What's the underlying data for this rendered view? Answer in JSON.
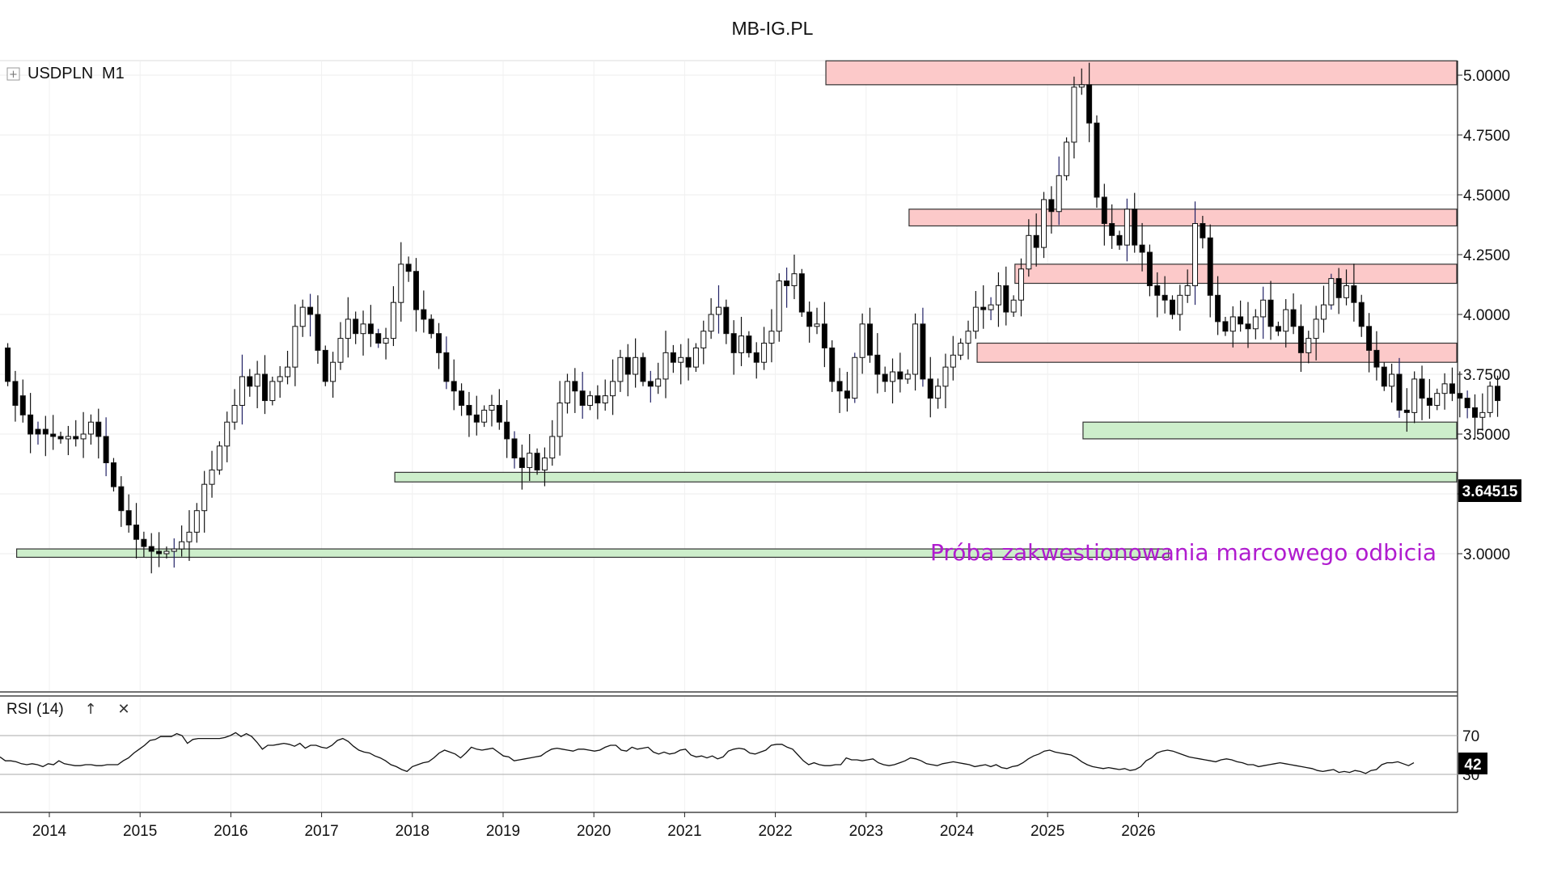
{
  "header": {
    "title": "MB-IG.PL"
  },
  "chart_data": {
    "type": "candlestick",
    "symbol": "USDPLN",
    "timeframe": "M1",
    "y_ticks": [
      "5.0000",
      "4.7500",
      "4.5000",
      "4.2500",
      "4.0000",
      "3.7500",
      "3.5000",
      "3.2500",
      "3.0000"
    ],
    "ylim": [
      2.96,
      5.06
    ],
    "x_ticks": [
      "2014",
      "2015",
      "2016",
      "2017",
      "2018",
      "2019",
      "2020",
      "2021",
      "2022",
      "2023",
      "2024",
      "2025",
      "2026"
    ],
    "last_price": "3.64515",
    "annotation": "Próba zakwestionowania marcowego odbicia",
    "resistance_zones": [
      {
        "from": "2022-08",
        "to": "end",
        "low": 4.96,
        "high": 5.06
      },
      {
        "from": "2023-07",
        "to": "end",
        "low": 4.37,
        "high": 4.44
      },
      {
        "from": "2024-09",
        "to": "end",
        "low": 4.13,
        "high": 4.21
      },
      {
        "from": "2024-04",
        "to": "end",
        "low": 3.8,
        "high": 3.88
      }
    ],
    "support_zones": [
      {
        "from": "2025-06",
        "to": "end",
        "low": 3.48,
        "high": 3.55
      },
      {
        "from": "2017-11",
        "to": "end",
        "low": 3.3,
        "high": 3.34
      },
      {
        "from": "2013-09",
        "to": "2026-05",
        "low": 2.985,
        "high": 3.02
      }
    ],
    "start": "2013-07",
    "candles": [
      [
        3.86,
        3.72
      ],
      [
        3.72,
        3.62
      ],
      [
        3.66,
        3.58
      ],
      [
        3.58,
        3.5
      ],
      [
        3.52,
        3.5
      ],
      [
        3.52,
        3.5
      ],
      [
        3.5,
        3.49
      ],
      [
        3.49,
        3.48
      ],
      [
        3.48,
        3.49
      ],
      [
        3.49,
        3.48
      ],
      [
        3.48,
        3.5
      ],
      [
        3.5,
        3.55
      ],
      [
        3.55,
        3.49
      ],
      [
        3.49,
        3.38
      ],
      [
        3.38,
        3.28
      ],
      [
        3.28,
        3.18
      ],
      [
        3.18,
        3.12
      ],
      [
        3.12,
        3.06
      ],
      [
        3.06,
        3.03
      ],
      [
        3.03,
        3.01
      ],
      [
        3.01,
        3.0
      ],
      [
        3.0,
        3.01
      ],
      [
        3.01,
        3.02
      ],
      [
        3.02,
        3.05
      ],
      [
        3.05,
        3.09
      ],
      [
        3.09,
        3.18
      ],
      [
        3.18,
        3.29
      ],
      [
        3.29,
        3.35
      ],
      [
        3.35,
        3.45
      ],
      [
        3.45,
        3.55
      ],
      [
        3.55,
        3.62
      ],
      [
        3.62,
        3.74
      ],
      [
        3.74,
        3.7
      ],
      [
        3.7,
        3.75
      ],
      [
        3.75,
        3.64
      ],
      [
        3.64,
        3.72
      ],
      [
        3.72,
        3.74
      ],
      [
        3.74,
        3.78
      ],
      [
        3.78,
        3.95
      ],
      [
        3.95,
        4.03
      ],
      [
        4.03,
        4.0
      ],
      [
        4.0,
        3.85
      ],
      [
        3.85,
        3.72
      ],
      [
        3.72,
        3.8
      ],
      [
        3.8,
        3.9
      ],
      [
        3.9,
        3.98
      ],
      [
        3.98,
        3.92
      ],
      [
        3.92,
        3.96
      ],
      [
        3.96,
        3.92
      ],
      [
        3.92,
        3.88
      ],
      [
        3.88,
        3.9
      ],
      [
        3.9,
        4.05
      ],
      [
        4.05,
        4.21
      ],
      [
        4.21,
        4.18
      ],
      [
        4.18,
        4.02
      ],
      [
        4.02,
        3.98
      ],
      [
        3.98,
        3.92
      ],
      [
        3.92,
        3.84
      ],
      [
        3.84,
        3.72
      ],
      [
        3.72,
        3.68
      ],
      [
        3.68,
        3.62
      ],
      [
        3.62,
        3.58
      ],
      [
        3.58,
        3.55
      ],
      [
        3.55,
        3.6
      ],
      [
        3.6,
        3.62
      ],
      [
        3.62,
        3.55
      ],
      [
        3.55,
        3.48
      ],
      [
        3.48,
        3.4
      ],
      [
        3.4,
        3.36
      ],
      [
        3.36,
        3.42
      ],
      [
        3.42,
        3.35
      ],
      [
        3.35,
        3.4
      ],
      [
        3.4,
        3.49
      ],
      [
        3.49,
        3.63
      ],
      [
        3.63,
        3.72
      ],
      [
        3.72,
        3.68
      ],
      [
        3.68,
        3.62
      ],
      [
        3.62,
        3.66
      ],
      [
        3.66,
        3.63
      ],
      [
        3.63,
        3.66
      ],
      [
        3.66,
        3.72
      ],
      [
        3.72,
        3.82
      ],
      [
        3.82,
        3.75
      ],
      [
        3.75,
        3.82
      ],
      [
        3.82,
        3.72
      ],
      [
        3.72,
        3.7
      ],
      [
        3.7,
        3.73
      ],
      [
        3.73,
        3.84
      ],
      [
        3.84,
        3.8
      ],
      [
        3.8,
        3.82
      ],
      [
        3.82,
        3.78
      ],
      [
        3.78,
        3.86
      ],
      [
        3.86,
        3.93
      ],
      [
        3.93,
        4.0
      ],
      [
        4.0,
        4.03
      ],
      [
        4.03,
        3.92
      ],
      [
        3.92,
        3.84
      ],
      [
        3.84,
        3.91
      ],
      [
        3.91,
        3.84
      ],
      [
        3.84,
        3.8
      ],
      [
        3.8,
        3.88
      ],
      [
        3.88,
        3.93
      ],
      [
        3.93,
        4.14
      ],
      [
        4.14,
        4.12
      ],
      [
        4.12,
        4.17
      ],
      [
        4.17,
        4.01
      ],
      [
        4.01,
        3.95
      ],
      [
        3.95,
        3.96
      ],
      [
        3.96,
        3.86
      ],
      [
        3.86,
        3.72
      ],
      [
        3.72,
        3.68
      ],
      [
        3.68,
        3.65
      ],
      [
        3.65,
        3.82
      ],
      [
        3.82,
        3.96
      ],
      [
        3.96,
        3.83
      ],
      [
        3.83,
        3.75
      ],
      [
        3.75,
        3.72
      ],
      [
        3.72,
        3.76
      ],
      [
        3.76,
        3.73
      ],
      [
        3.73,
        3.75
      ],
      [
        3.75,
        3.96
      ],
      [
        3.96,
        3.73
      ],
      [
        3.73,
        3.65
      ],
      [
        3.65,
        3.7
      ],
      [
        3.7,
        3.78
      ],
      [
        3.78,
        3.83
      ],
      [
        3.83,
        3.88
      ],
      [
        3.88,
        3.93
      ],
      [
        3.93,
        4.03
      ],
      [
        4.03,
        4.02
      ],
      [
        4.02,
        4.04
      ],
      [
        4.04,
        4.12
      ],
      [
        4.12,
        4.01
      ],
      [
        4.01,
        4.06
      ],
      [
        4.06,
        4.19
      ],
      [
        4.19,
        4.33
      ],
      [
        4.33,
        4.28
      ],
      [
        4.28,
        4.48
      ],
      [
        4.48,
        4.43
      ],
      [
        4.43,
        4.58
      ],
      [
        4.58,
        4.72
      ],
      [
        4.72,
        4.95
      ],
      [
        4.95,
        4.96
      ],
      [
        4.96,
        4.8
      ],
      [
        4.8,
        4.49
      ],
      [
        4.49,
        4.38
      ],
      [
        4.38,
        4.33
      ],
      [
        4.33,
        4.29
      ],
      [
        4.29,
        4.44
      ],
      [
        4.44,
        4.29
      ],
      [
        4.29,
        4.26
      ],
      [
        4.26,
        4.12
      ],
      [
        4.12,
        4.08
      ],
      [
        4.08,
        4.06
      ],
      [
        4.06,
        4.0
      ],
      [
        4.0,
        4.08
      ],
      [
        4.08,
        4.12
      ],
      [
        4.12,
        4.38
      ],
      [
        4.38,
        4.32
      ],
      [
        4.32,
        4.08
      ],
      [
        4.08,
        3.97
      ],
      [
        3.97,
        3.93
      ],
      [
        3.93,
        3.99
      ],
      [
        3.99,
        3.96
      ],
      [
        3.96,
        3.94
      ],
      [
        3.94,
        3.99
      ],
      [
        3.99,
        4.06
      ],
      [
        4.06,
        3.95
      ],
      [
        3.95,
        3.93
      ],
      [
        3.93,
        4.02
      ],
      [
        4.02,
        3.95
      ],
      [
        3.95,
        3.84
      ],
      [
        3.84,
        3.9
      ],
      [
        3.9,
        3.98
      ],
      [
        3.98,
        4.04
      ],
      [
        4.04,
        4.15
      ],
      [
        4.15,
        4.07
      ],
      [
        4.07,
        4.12
      ],
      [
        4.12,
        4.05
      ],
      [
        4.05,
        3.95
      ],
      [
        3.95,
        3.85
      ],
      [
        3.85,
        3.78
      ],
      [
        3.78,
        3.7
      ],
      [
        3.7,
        3.75
      ],
      [
        3.75,
        3.6
      ],
      [
        3.6,
        3.59
      ],
      [
        3.59,
        3.73
      ],
      [
        3.73,
        3.65
      ],
      [
        3.65,
        3.62
      ],
      [
        3.62,
        3.67
      ],
      [
        3.67,
        3.71
      ],
      [
        3.71,
        3.67
      ],
      [
        3.67,
        3.65
      ],
      [
        3.65,
        3.61
      ],
      [
        3.61,
        3.57
      ],
      [
        3.57,
        3.59
      ],
      [
        3.59,
        3.7
      ],
      [
        3.7,
        3.64
      ]
    ],
    "rsi": {
      "label": "RSI (14)",
      "levels": [
        "70",
        "30"
      ],
      "last_value": "42",
      "values": [
        48,
        44,
        44,
        43,
        41,
        40,
        41,
        40,
        38,
        41,
        40,
        44,
        41,
        40,
        39,
        39,
        40,
        40,
        39,
        39,
        40,
        40,
        40,
        44,
        47,
        52,
        56,
        60,
        65,
        66,
        69,
        69,
        69,
        72,
        70,
        62,
        66,
        67,
        67,
        67,
        67,
        67,
        68,
        70,
        73,
        69,
        72,
        69,
        63,
        56,
        60,
        60,
        61,
        62,
        61,
        59,
        62,
        57,
        60,
        60,
        58,
        57,
        60,
        65,
        67,
        64,
        59,
        55,
        53,
        52,
        49,
        47,
        44,
        40,
        38,
        35,
        33,
        38,
        40,
        42,
        43,
        47,
        52,
        55,
        53,
        51,
        47,
        52,
        58,
        56,
        55,
        56,
        57,
        53,
        49,
        48,
        44,
        45,
        46,
        47,
        48,
        49,
        53,
        56,
        57,
        56,
        55,
        54,
        56,
        56,
        55,
        54,
        55,
        58,
        60,
        60,
        55,
        54,
        58,
        56,
        57,
        58,
        53,
        51,
        53,
        51,
        52,
        55,
        56,
        50,
        48,
        49,
        47,
        49,
        46,
        48,
        54,
        56,
        57,
        56,
        52,
        51,
        53,
        55,
        60,
        61,
        61,
        58,
        56,
        50,
        44,
        40,
        42,
        40,
        39,
        39,
        40,
        40,
        47,
        45,
        45,
        44,
        45,
        46,
        42,
        40,
        39,
        40,
        42,
        44,
        47,
        46,
        44,
        41,
        40,
        39,
        41,
        42,
        43,
        42,
        41,
        40,
        38,
        39,
        40,
        38,
        40,
        37,
        36,
        38,
        39,
        42,
        46,
        49,
        51,
        54,
        55,
        53,
        52,
        51,
        50,
        47,
        43,
        40,
        38,
        37,
        36,
        37,
        36,
        35,
        36,
        34,
        35,
        38,
        44,
        47,
        52,
        54,
        55,
        54,
        52,
        50,
        48,
        47,
        46,
        45,
        44,
        43,
        45,
        46,
        45,
        43,
        42,
        40,
        40,
        38,
        39,
        40,
        41,
        42,
        41,
        40,
        39,
        38,
        37,
        36,
        34,
        33,
        34,
        35,
        32,
        33,
        32,
        34,
        33,
        31,
        34,
        35,
        40,
        42,
        42,
        43,
        41,
        39,
        42
      ]
    }
  }
}
